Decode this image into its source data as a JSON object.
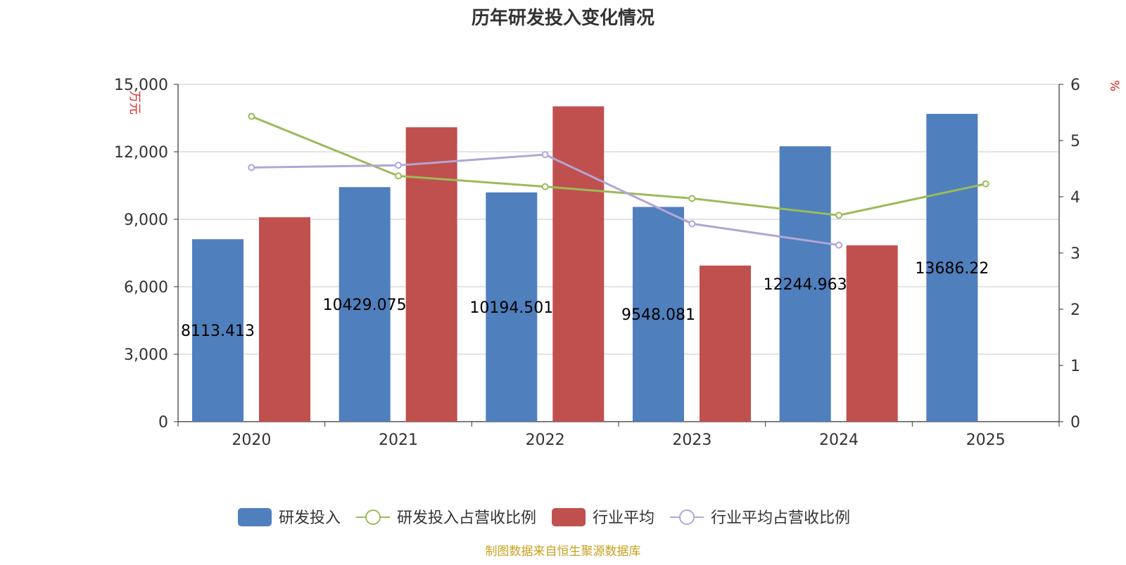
{
  "chart_data": {
    "type": "bar",
    "title": "历年研发投入变化情况",
    "categories": [
      "2020",
      "2021",
      "2022",
      "2023",
      "2024",
      "2025"
    ],
    "y_left": {
      "label": "万元",
      "min": 0,
      "max": 15000,
      "ticks": [
        0,
        3000,
        6000,
        9000,
        12000,
        15000
      ],
      "tick_labels": [
        "0",
        "3,000",
        "6,000",
        "9,000",
        "12,000",
        "15,000"
      ]
    },
    "y_right": {
      "label": "%",
      "min": 0,
      "max": 6,
      "ticks": [
        0,
        1,
        2,
        3,
        4,
        5,
        6
      ],
      "tick_labels": [
        "0",
        "1",
        "2",
        "3",
        "4",
        "5",
        "6"
      ]
    },
    "grid": true,
    "legend_position": "bottom-center",
    "series": [
      {
        "name": "研发投入",
        "type": "bar",
        "axis": "left",
        "color": "#4f7fbd",
        "values": [
          8113.413,
          10429.075,
          10194.501,
          9548.081,
          12244.963,
          13686.22
        ],
        "data_labels": [
          "8113.413",
          "10429.075",
          "10194.501",
          "9548.081",
          "12244.963",
          "13686.22"
        ]
      },
      {
        "name": "研发投入占营收比例",
        "type": "line",
        "axis": "right",
        "color": "#9bbb59",
        "values": [
          5.43,
          4.37,
          4.18,
          3.97,
          3.67,
          4.23
        ]
      },
      {
        "name": "行业平均",
        "type": "bar",
        "axis": "left",
        "color": "#c0504d",
        "values": [
          9090,
          13090,
          14020,
          6940,
          7840,
          null
        ]
      },
      {
        "name": "行业平均占营收比例",
        "type": "line",
        "axis": "right",
        "color": "#b3a5d6",
        "values": [
          4.52,
          4.56,
          4.75,
          3.52,
          3.14,
          null
        ]
      }
    ],
    "axis_label_color": "#e02020"
  },
  "footer": {
    "source": "制图数据来自恒生聚源数据库",
    "color": "#c9a020"
  }
}
